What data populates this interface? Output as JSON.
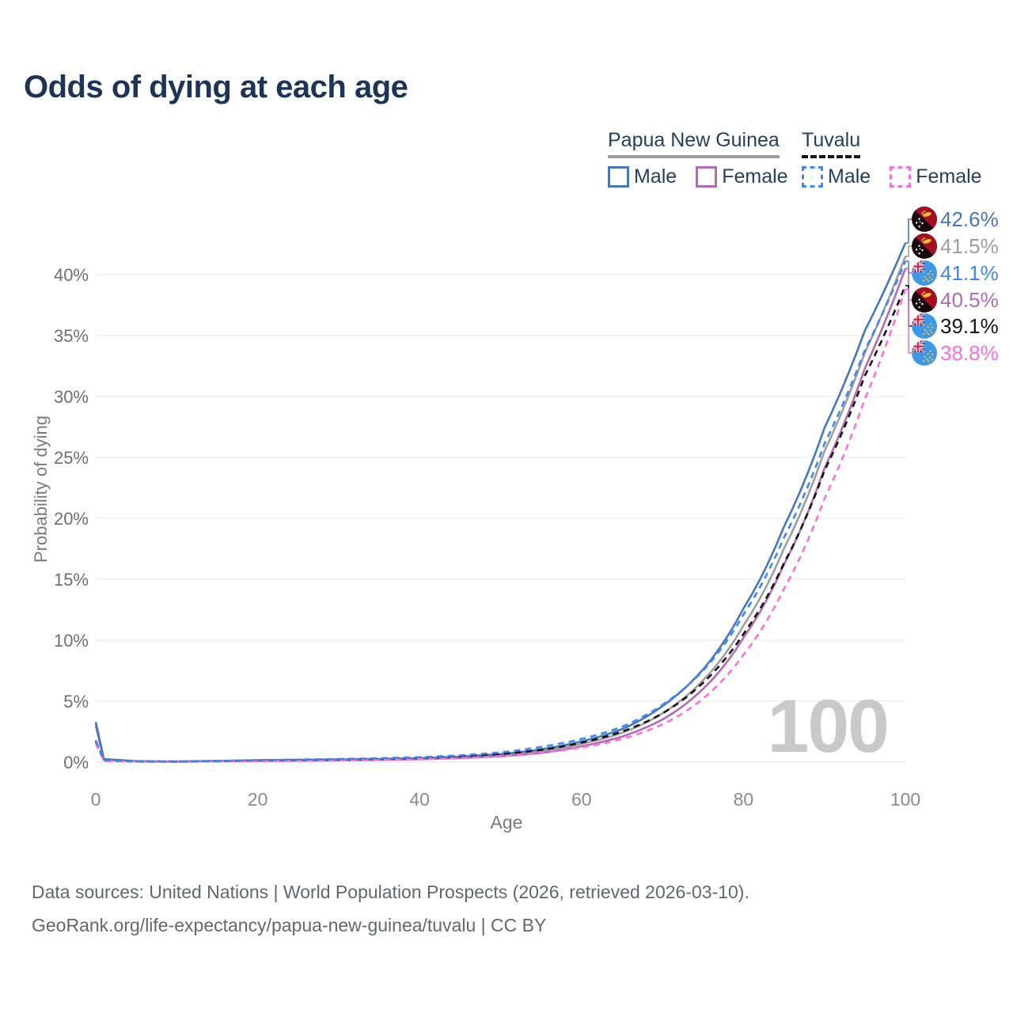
{
  "title": "Odds of dying at each age",
  "legend": {
    "groups": [
      {
        "label": "Papua New Guinea",
        "line_style": "solid",
        "underline_color": "#9e9e9e",
        "items": [
          {
            "label": "Male",
            "color": "#4678b9",
            "dash": false
          },
          {
            "label": "Female",
            "color": "#b36ab4",
            "dash": false
          }
        ]
      },
      {
        "label": "Tuvalu",
        "line_style": "dashed",
        "underline_color": "#161616",
        "items": [
          {
            "label": "Male",
            "color": "#3f87f5",
            "dash": true
          },
          {
            "label": "Female",
            "color": "#fa6fda",
            "dash": true
          }
        ]
      }
    ]
  },
  "watermark": "100",
  "footer": {
    "line1": "Data sources: United Nations | World Population Prospects (2026, retrieved 2026-03-10).",
    "line2": "GeoRank.org/life-expectancy/papua-new-guinea/tuvalu | CC BY"
  },
  "chart_data": {
    "type": "line",
    "title": "Odds of dying at each age",
    "xlabel": "Age",
    "ylabel": "Probability of dying",
    "xlim": [
      0,
      100
    ],
    "ylim": [
      0,
      44
    ],
    "grid": "horizontal",
    "legend_position": "top-right",
    "x_ticks": [
      0,
      20,
      40,
      60,
      80,
      100
    ],
    "y_tick_values": [
      0,
      5,
      10,
      15,
      20,
      25,
      30,
      35,
      40
    ],
    "y_ticks": [
      "0%",
      "5%",
      "10%",
      "15%",
      "20%",
      "25%",
      "30%",
      "35%",
      "40%"
    ],
    "ages": [
      0,
      1,
      5,
      10,
      15,
      20,
      25,
      30,
      35,
      40,
      45,
      50,
      55,
      60,
      65,
      70,
      75,
      80,
      85,
      90,
      95,
      100
    ],
    "series": [
      {
        "name": "Papua New Guinea Male",
        "flag": "png",
        "color": "#4678b9",
        "dash": "solid",
        "end_label": "42.6%",
        "end_value": 42.6,
        "values": [
          3.3,
          0.25,
          0.08,
          0.06,
          0.1,
          0.16,
          0.19,
          0.22,
          0.26,
          0.33,
          0.46,
          0.66,
          1.05,
          1.7,
          2.7,
          4.6,
          7.6,
          12.6,
          19.3,
          27.4,
          35.4,
          42.6
        ]
      },
      {
        "name": "Papua New Guinea",
        "flag": "png",
        "color": "#9e9e9e",
        "dash": "solid",
        "end_label": "41.5%",
        "end_value": 41.5,
        "values": [
          3.15,
          0.22,
          0.07,
          0.05,
          0.09,
          0.13,
          0.16,
          0.18,
          0.22,
          0.28,
          0.39,
          0.56,
          0.9,
          1.5,
          2.4,
          4.0,
          6.7,
          11.2,
          17.5,
          25.5,
          33.6,
          41.5
        ]
      },
      {
        "name": "Tuvalu Male",
        "flag": "tuvalu",
        "color": "#3f87f5",
        "dash": "dashed",
        "end_label": "41.1%",
        "end_value": 41.1,
        "values": [
          1.8,
          0.15,
          0.05,
          0.04,
          0.09,
          0.16,
          0.21,
          0.26,
          0.32,
          0.41,
          0.56,
          0.8,
          1.25,
          1.9,
          2.9,
          4.7,
          7.5,
          12.1,
          18.4,
          26.1,
          33.8,
          41.1
        ]
      },
      {
        "name": "Papua New Guinea Female",
        "flag": "png",
        "color": "#b36ab4",
        "dash": "solid",
        "end_label": "40.5%",
        "end_value": 40.5,
        "values": [
          3.0,
          0.2,
          0.06,
          0.04,
          0.07,
          0.1,
          0.12,
          0.15,
          0.18,
          0.24,
          0.33,
          0.48,
          0.75,
          1.3,
          2.1,
          3.5,
          6.0,
          10.2,
          16.2,
          24.1,
          32.3,
          40.5
        ]
      },
      {
        "name": "Tuvalu",
        "flag": "tuvalu",
        "color": "#161616",
        "dash": "dashed",
        "end_label": "39.1%",
        "end_value": 39.1,
        "values": [
          1.7,
          0.13,
          0.05,
          0.04,
          0.08,
          0.13,
          0.17,
          0.21,
          0.26,
          0.33,
          0.46,
          0.65,
          1.0,
          1.6,
          2.5,
          4.0,
          6.5,
          10.5,
          16.3,
          23.9,
          31.7,
          39.1
        ]
      },
      {
        "name": "Tuvalu Female",
        "flag": "tuvalu",
        "color": "#fa6fda",
        "dash": "dashed",
        "end_label": "38.8%",
        "end_value": 38.8,
        "values": [
          1.55,
          0.12,
          0.04,
          0.03,
          0.06,
          0.09,
          0.11,
          0.14,
          0.18,
          0.24,
          0.34,
          0.5,
          0.78,
          1.2,
          1.9,
          3.1,
          5.2,
          8.8,
          14.2,
          21.6,
          29.8,
          38.8
        ]
      }
    ]
  }
}
